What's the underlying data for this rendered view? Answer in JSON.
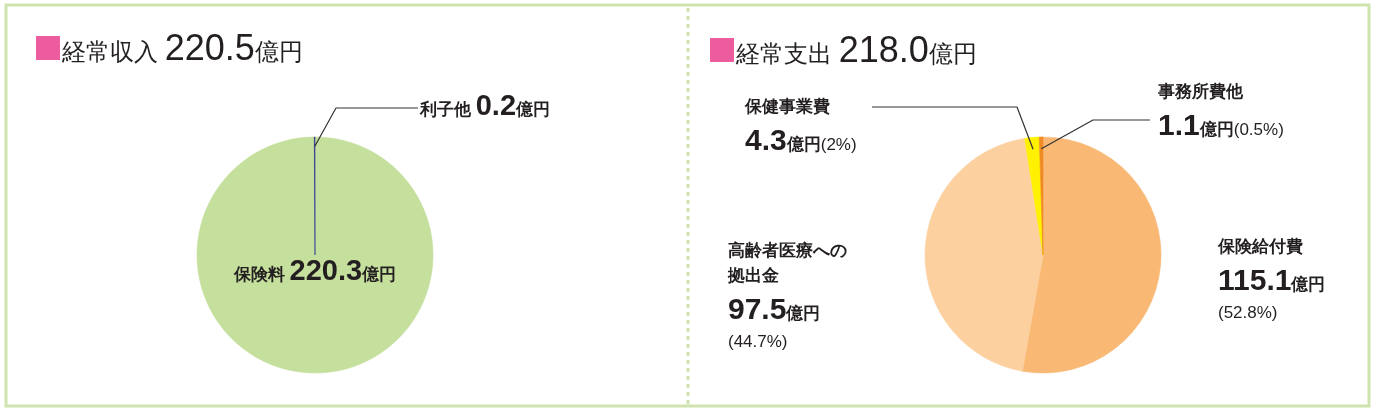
{
  "chart_data": [
    {
      "type": "pie",
      "title": "経常収入 220.5億円",
      "categories": [
        "保険料",
        "利子他"
      ],
      "values": [
        220.3,
        0.2
      ],
      "colors": [
        "#c5df9d",
        "#2e3192"
      ],
      "value_labels": [
        "220.3億円",
        "0.2億円"
      ]
    },
    {
      "type": "pie",
      "title": "経常支出 218.0億円",
      "categories": [
        "保険給付費",
        "高齢者医療への拠出金",
        "保健事業費",
        "事務所費他"
      ],
      "values": [
        115.1,
        97.5,
        4.3,
        1.1
      ],
      "colors": [
        "#f9b975",
        "#fcd09f",
        "#fff100",
        "#f08a24"
      ],
      "value_labels": [
        "115.1億円(52.8%)",
        "97.5億円(44.7%)",
        "4.3億円(2%)",
        "1.1億円(0.5%)"
      ]
    }
  ]
}
